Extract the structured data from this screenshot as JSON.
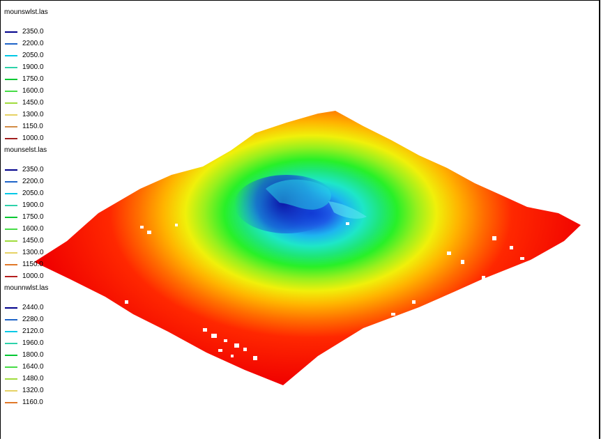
{
  "legend": {
    "groups": [
      {
        "title": "mounswlst.las",
        "entries": [
          {
            "label": "2350.0",
            "color": "#00008b"
          },
          {
            "label": "2200.0",
            "color": "#1e64c8"
          },
          {
            "label": "2050.0",
            "color": "#00c8e6"
          },
          {
            "label": "1900.0",
            "color": "#2ed2aa"
          },
          {
            "label": "1750.0",
            "color": "#00c832"
          },
          {
            "label": "1600.0",
            "color": "#46dc46"
          },
          {
            "label": "1450.0",
            "color": "#a0dc3c"
          },
          {
            "label": "1300.0",
            "color": "#e6d264"
          },
          {
            "label": "1150.0",
            "color": "#d28c46"
          },
          {
            "label": "1000.0",
            "color": "#a01e1e"
          }
        ]
      },
      {
        "title": "mounselst.las",
        "entries": [
          {
            "label": "2350.0",
            "color": "#00008b"
          },
          {
            "label": "2200.0",
            "color": "#1e64c8"
          },
          {
            "label": "2050.0",
            "color": "#00c8e6"
          },
          {
            "label": "1900.0",
            "color": "#2ed2aa"
          },
          {
            "label": "1750.0",
            "color": "#00c832"
          },
          {
            "label": "1600.0",
            "color": "#46dc46"
          },
          {
            "label": "1450.0",
            "color": "#a0dc3c"
          },
          {
            "label": "1300.0",
            "color": "#e6d264"
          },
          {
            "label": "1150.0",
            "color": "#e07828"
          },
          {
            "label": "1000.0",
            "color": "#b41e1e"
          }
        ]
      },
      {
        "title": "mounnwlst.las",
        "entries": [
          {
            "label": "2440.0",
            "color": "#00008b"
          },
          {
            "label": "2280.0",
            "color": "#1e64c8"
          },
          {
            "label": "2120.0",
            "color": "#00c8e6"
          },
          {
            "label": "1960.0",
            "color": "#2ed2aa"
          },
          {
            "label": "1800.0",
            "color": "#00c832"
          },
          {
            "label": "1640.0",
            "color": "#46dc46"
          },
          {
            "label": "1480.0",
            "color": "#a0dc3c"
          },
          {
            "label": "1320.0",
            "color": "#e6d264"
          },
          {
            "label": "1160.0",
            "color": "#e07828"
          }
        ]
      }
    ]
  }
}
